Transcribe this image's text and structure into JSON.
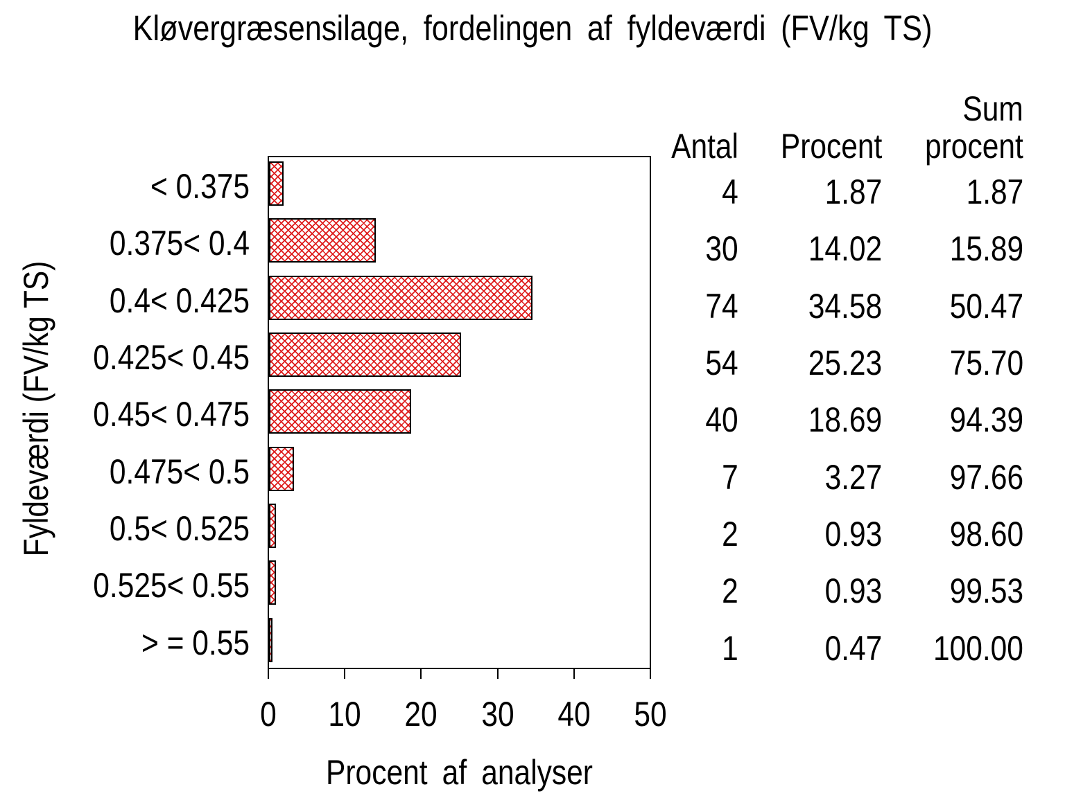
{
  "chart_data": {
    "type": "bar",
    "orientation": "horizontal",
    "title": "Kløvergræsensilage, fordelingen af fyldeværdi (FV/kg TS)",
    "xlabel": "Procent af analyser",
    "ylabel": "Fyldeværdi (FV/kg TS)",
    "xlim": [
      0,
      50
    ],
    "xticks": [
      "0",
      "10",
      "20",
      "30",
      "40",
      "50"
    ],
    "grid": "off",
    "legend": "none",
    "categories": [
      "< 0.375",
      "0.375< 0.4",
      "0.4< 0.425",
      "0.425< 0.45",
      "0.45< 0.475",
      "0.475< 0.5",
      "0.5< 0.525",
      "0.525< 0.55",
      "> = 0.55"
    ],
    "values": [
      1.87,
      14.02,
      34.58,
      25.23,
      18.69,
      3.27,
      0.93,
      0.93,
      0.47
    ],
    "counts": [
      4,
      30,
      74,
      54,
      40,
      7,
      2,
      2,
      1
    ],
    "bar_fill_style": "red-crosshatch",
    "bar_hatch_color": "#de1b1b",
    "bar_border_color": "#000000",
    "background_color": "#ffffff",
    "text_color": "#000000"
  },
  "table": {
    "headers": {
      "antal": "Antal",
      "procent": "Procent",
      "sum_procent_line1": "Sum",
      "sum_procent_line2": "procent"
    },
    "rows": [
      [
        "4",
        "1.87",
        "1.87"
      ],
      [
        "30",
        "14.02",
        "15.89"
      ],
      [
        "74",
        "34.58",
        "50.47"
      ],
      [
        "54",
        "25.23",
        "75.70"
      ],
      [
        "40",
        "18.69",
        "94.39"
      ],
      [
        "7",
        "3.27",
        "97.66"
      ],
      [
        "2",
        "0.93",
        "98.60"
      ],
      [
        "2",
        "0.93",
        "99.53"
      ],
      [
        "1",
        "0.47",
        "100.00"
      ]
    ]
  }
}
